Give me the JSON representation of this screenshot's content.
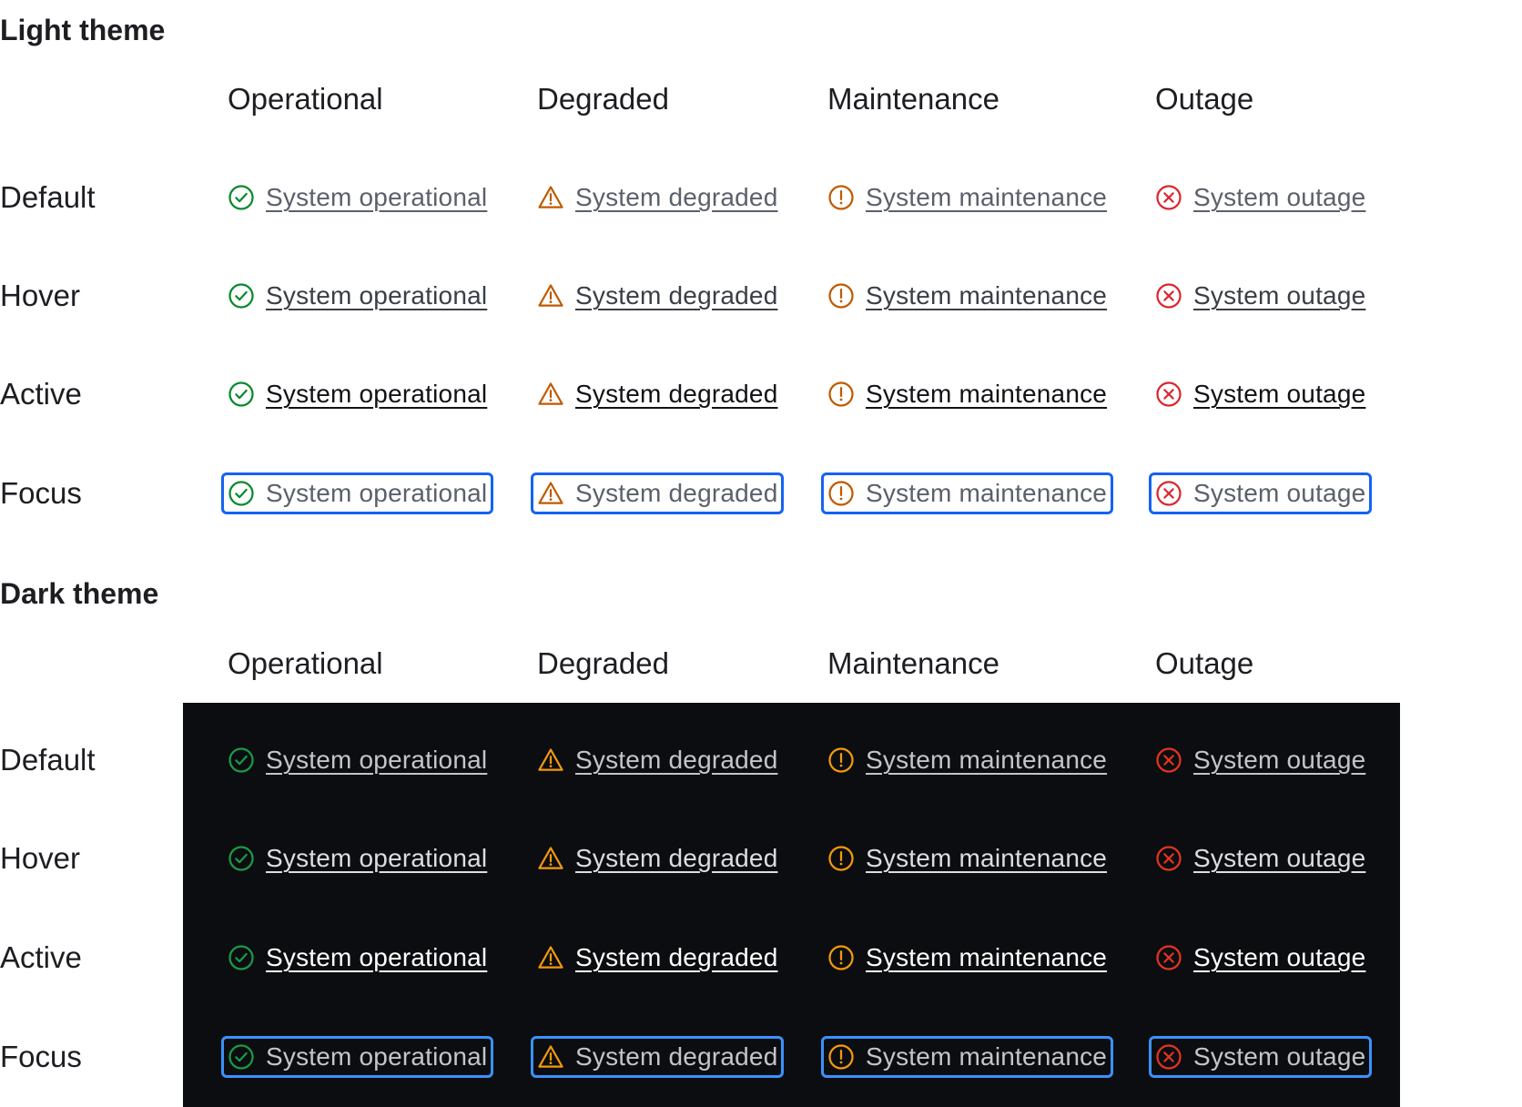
{
  "sections": [
    {
      "theme": "light",
      "title": "Light theme",
      "columns": [
        "Operational",
        "Degraded",
        "Maintenance",
        "Outage"
      ],
      "rows": [
        "Default",
        "Hover",
        "Active",
        "Focus"
      ],
      "links": [
        {
          "label": "System operational",
          "icon": "check-circle-icon",
          "color": "#0a8a2e"
        },
        {
          "label": "System degraded",
          "icon": "warning-triangle-icon",
          "color": "#c05a00"
        },
        {
          "label": "System maintenance",
          "icon": "exclamation-circle-icon",
          "color": "#c05a00"
        },
        {
          "label": "System outage",
          "icon": "x-circle-icon",
          "color": "#d9272e"
        }
      ]
    },
    {
      "theme": "dark",
      "title": "Dark theme",
      "columns": [
        "Operational",
        "Degraded",
        "Maintenance",
        "Outage"
      ],
      "rows": [
        "Default",
        "Hover",
        "Active",
        "Focus"
      ],
      "links": [
        {
          "label": "System operational",
          "icon": "check-circle-icon",
          "color": "#1a9a48"
        },
        {
          "label": "System degraded",
          "icon": "warning-triangle-icon",
          "color": "#f39a0b"
        },
        {
          "label": "System maintenance",
          "icon": "exclamation-circle-icon",
          "color": "#f39a0b"
        },
        {
          "label": "System outage",
          "icon": "x-circle-icon",
          "color": "#e5341f"
        }
      ]
    }
  ]
}
